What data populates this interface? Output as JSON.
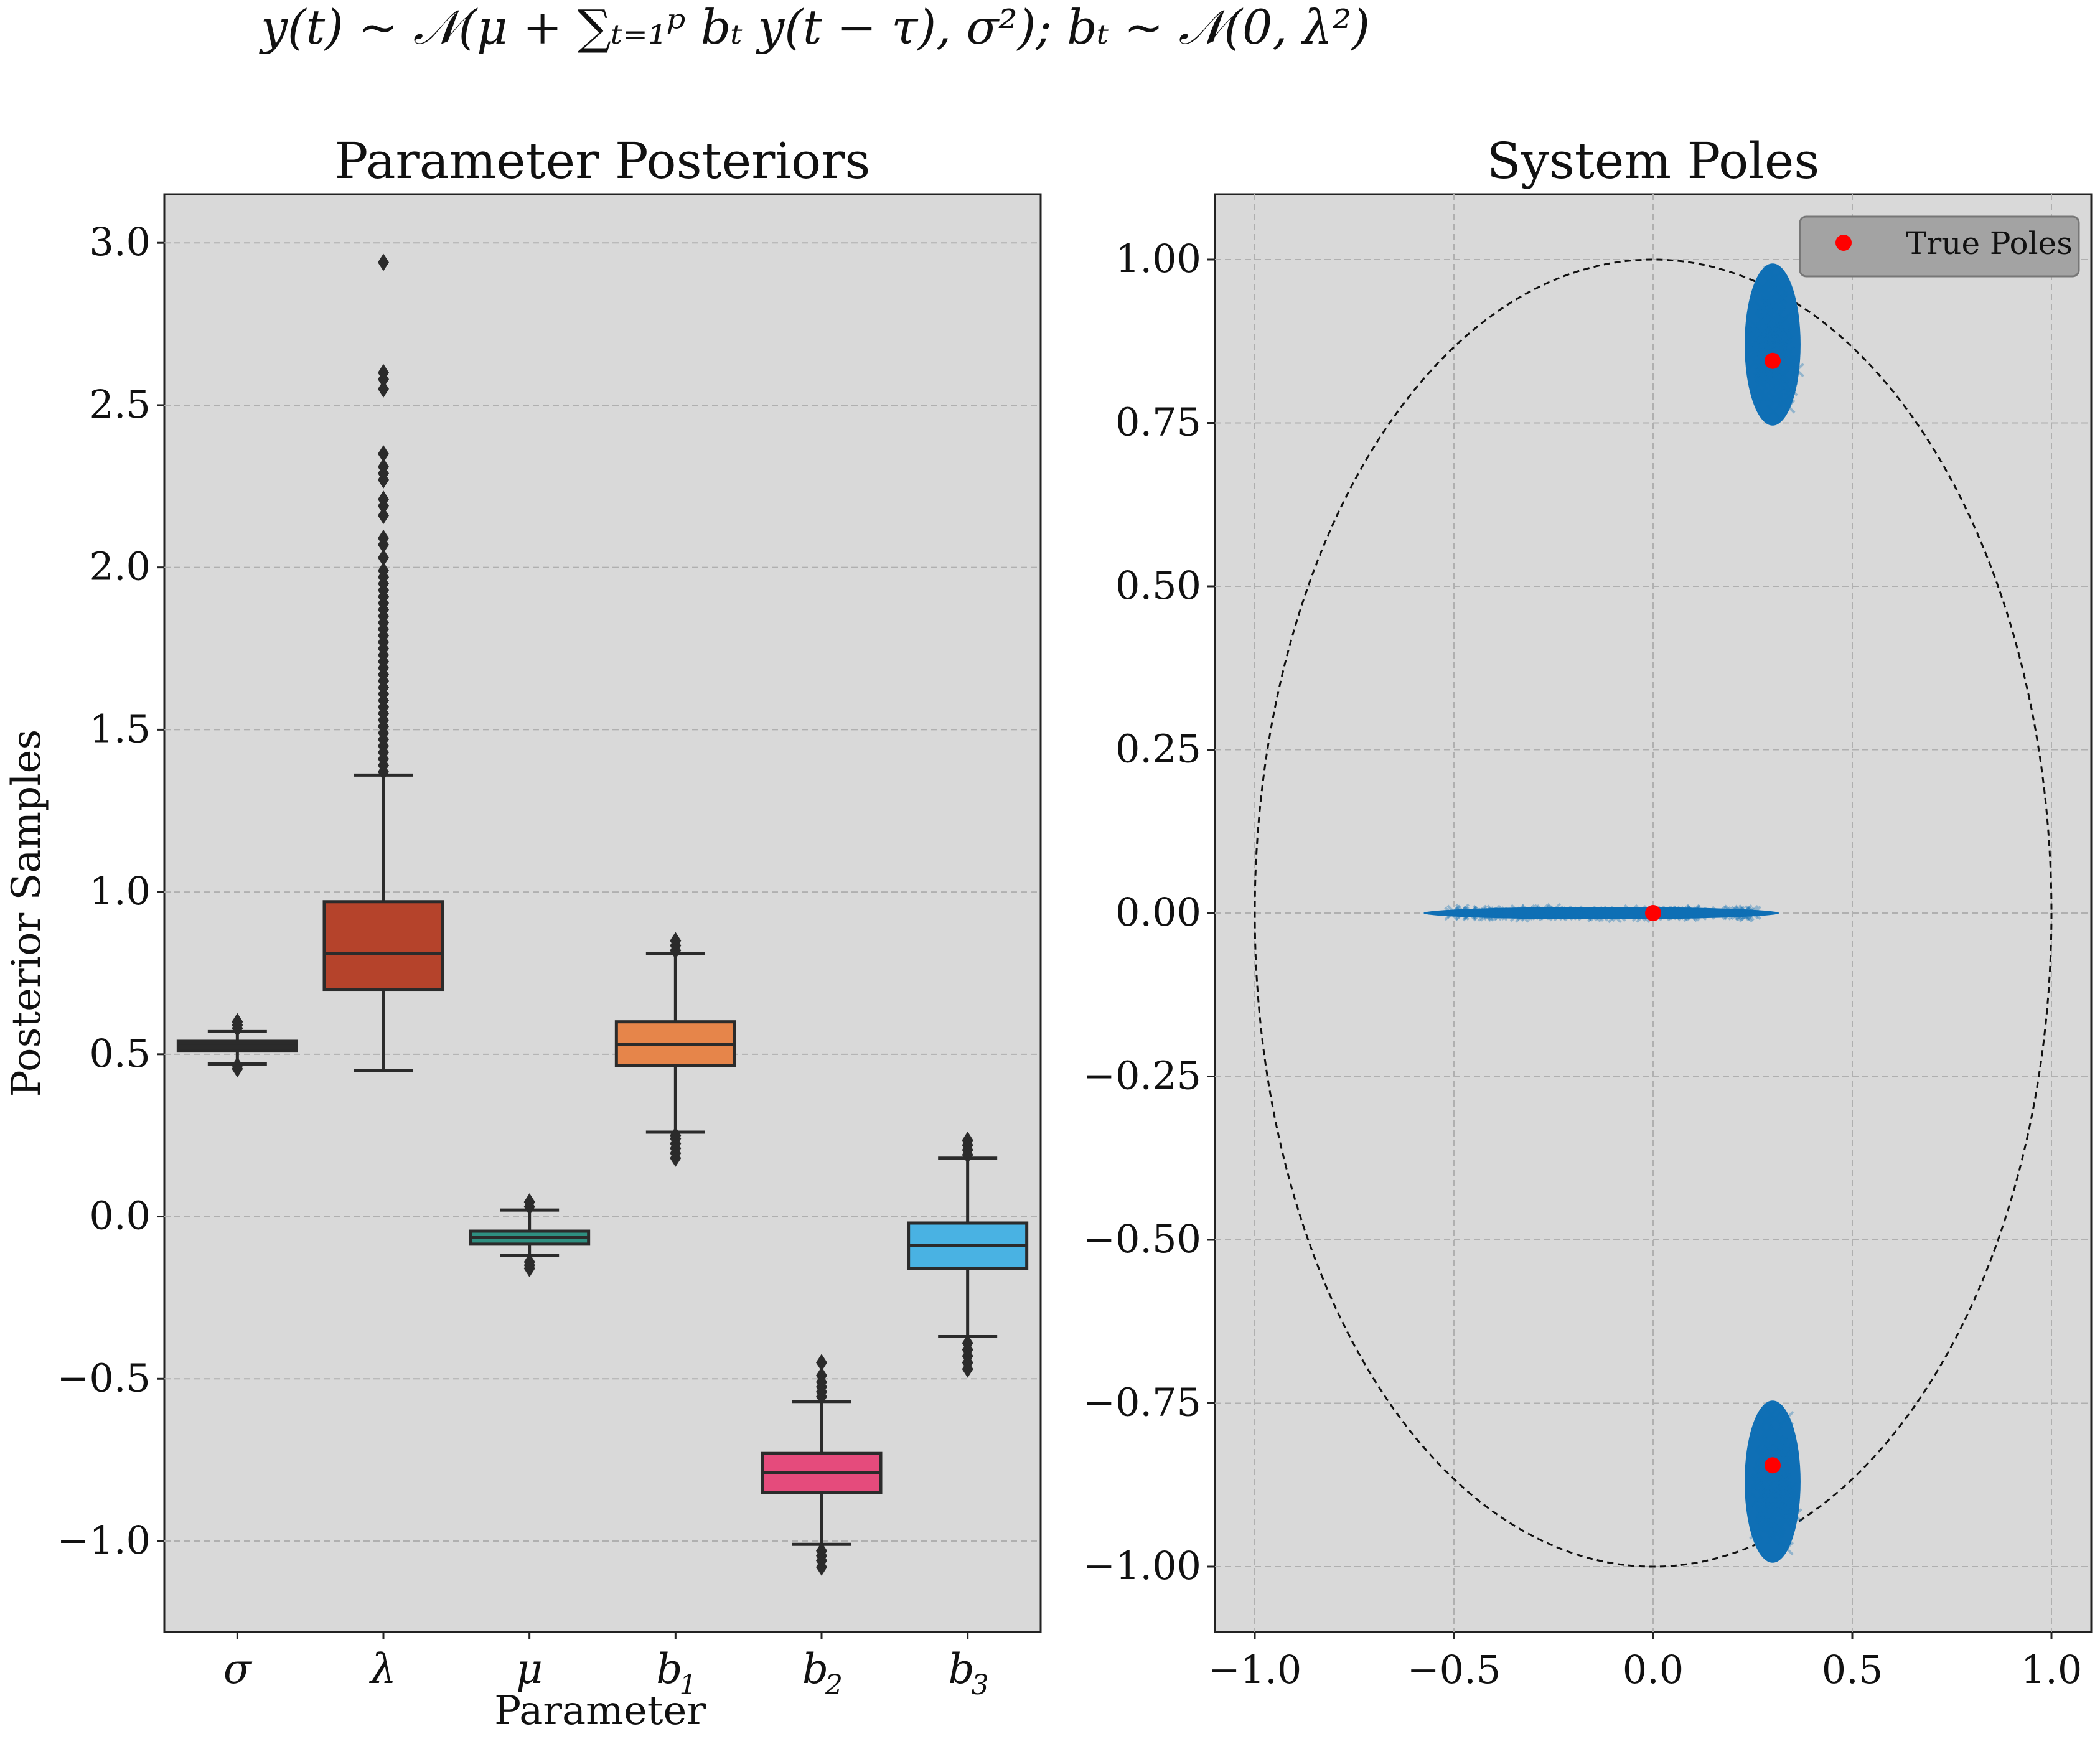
{
  "figure": {
    "suptitle": "y(t) ~ 𝒩(μ + ∑ₜ₌₁ᵖ bₜ y(t − τ), σ²); bₜ ~ 𝒩(0, λ²)"
  },
  "chart_data": [
    {
      "type": "box",
      "title": "Parameter Posteriors",
      "xlabel": "Parameter",
      "ylabel": "Posterior Samples",
      "ylim": [
        -1.28,
        3.15
      ],
      "yticks": [
        -1.0,
        -0.5,
        0.0,
        0.5,
        1.0,
        1.5,
        2.0,
        2.5,
        3.0
      ],
      "ytick_labels": [
        "−1.0",
        "−0.5",
        "0.0",
        "0.5",
        "1.0",
        "1.5",
        "2.0",
        "2.5",
        "3.0"
      ],
      "grid": true,
      "background": "#d9d9d9",
      "categories": [
        "σ",
        "λ",
        "μ",
        "b1",
        "b2",
        "b3"
      ],
      "category_labels": [
        {
          "main": "σ",
          "sub": ""
        },
        {
          "main": "λ",
          "sub": ""
        },
        {
          "main": "μ",
          "sub": ""
        },
        {
          "main": "b",
          "sub": "1"
        },
        {
          "main": "b",
          "sub": "2"
        },
        {
          "main": "b",
          "sub": "3"
        }
      ],
      "boxes": [
        {
          "name": "σ",
          "color": "#2b2b2b",
          "q1": 0.51,
          "median": 0.525,
          "q3": 0.54,
          "whisker_low": 0.47,
          "whisker_high": 0.57,
          "outliers": [
            0.455,
            0.465,
            0.58,
            0.59,
            0.6
          ]
        },
        {
          "name": "λ",
          "color": "#b5432b",
          "q1": 0.7,
          "median": 0.81,
          "q3": 0.97,
          "whisker_low": 0.45,
          "whisker_high": 1.36,
          "outliers": [
            1.37,
            1.39,
            1.41,
            1.43,
            1.45,
            1.47,
            1.49,
            1.51,
            1.53,
            1.55,
            1.57,
            1.59,
            1.61,
            1.63,
            1.65,
            1.67,
            1.69,
            1.71,
            1.73,
            1.75,
            1.77,
            1.79,
            1.81,
            1.83,
            1.85,
            1.87,
            1.89,
            1.91,
            1.93,
            1.95,
            1.97,
            1.99,
            2.03,
            2.07,
            2.09,
            2.16,
            2.19,
            2.21,
            2.27,
            2.29,
            2.31,
            2.35,
            2.55,
            2.58,
            2.6,
            2.94
          ]
        },
        {
          "name": "μ",
          "color": "#2e8f80",
          "q1": -0.085,
          "median": -0.065,
          "q3": -0.045,
          "whisker_low": -0.12,
          "whisker_high": 0.02,
          "outliers": [
            -0.16,
            -0.15,
            -0.14,
            0.03,
            0.045
          ]
        },
        {
          "name": "b1",
          "color": "#e6854a",
          "q1": 0.465,
          "median": 0.53,
          "q3": 0.6,
          "whisker_low": 0.26,
          "whisker_high": 0.81,
          "outliers": [
            0.18,
            0.195,
            0.21,
            0.225,
            0.24,
            0.25,
            0.82,
            0.835,
            0.85
          ]
        },
        {
          "name": "b2",
          "color": "#e54b7c",
          "q1": -0.85,
          "median": -0.79,
          "q3": -0.73,
          "whisker_low": -1.01,
          "whisker_high": -0.57,
          "outliers": [
            -1.08,
            -1.06,
            -1.045,
            -1.03,
            -0.555,
            -0.54,
            -0.525,
            -0.51,
            -0.49,
            -0.45
          ]
        },
        {
          "name": "b3",
          "color": "#49b2e3",
          "q1": -0.16,
          "median": -0.09,
          "q3": -0.02,
          "whisker_low": -0.37,
          "whisker_high": 0.18,
          "outliers": [
            -0.47,
            -0.45,
            -0.43,
            -0.41,
            -0.39,
            0.19,
            0.205,
            0.22,
            0.235
          ]
        }
      ]
    },
    {
      "type": "scatter",
      "title": "System Poles",
      "xlim": [
        -1.1,
        1.1
      ],
      "ylim": [
        -1.1,
        1.1
      ],
      "xticks": [
        -1.0,
        -0.5,
        0.0,
        0.5,
        1.0
      ],
      "xtick_labels": [
        "−1.0",
        "−0.5",
        "0.0",
        "0.5",
        "1.0"
      ],
      "yticks": [
        -1.0,
        -0.75,
        -0.5,
        -0.25,
        0.0,
        0.25,
        0.5,
        0.75,
        1.0
      ],
      "ytick_labels": [
        "−1.00",
        "−0.75",
        "−0.50",
        "−0.25",
        "0.00",
        "0.25",
        "0.50",
        "0.75",
        "1.00"
      ],
      "grid": true,
      "background": "#d9d9d9",
      "unit_circle": true,
      "legend": {
        "entries": [
          "True Poles"
        ],
        "placement": "top-right"
      },
      "sample_color": "#0f6fb5",
      "true_pole_color": "#ff0000",
      "true_poles": [
        {
          "x": 0.3,
          "y": 0.845
        },
        {
          "x": 0.3,
          "y": -0.845
        },
        {
          "x": 0.0,
          "y": 0.0
        }
      ],
      "posterior_clusters": [
        {
          "x_center": 0.3,
          "y_center": 0.87,
          "x_spread": 0.09,
          "y_spread": 0.2
        },
        {
          "x_center": 0.3,
          "y_center": -0.87,
          "x_spread": 0.09,
          "y_spread": 0.2
        },
        {
          "x_center": -0.13,
          "y_center": 0.0,
          "x_spread": 0.62,
          "y_spread": 0.01
        }
      ]
    }
  ]
}
